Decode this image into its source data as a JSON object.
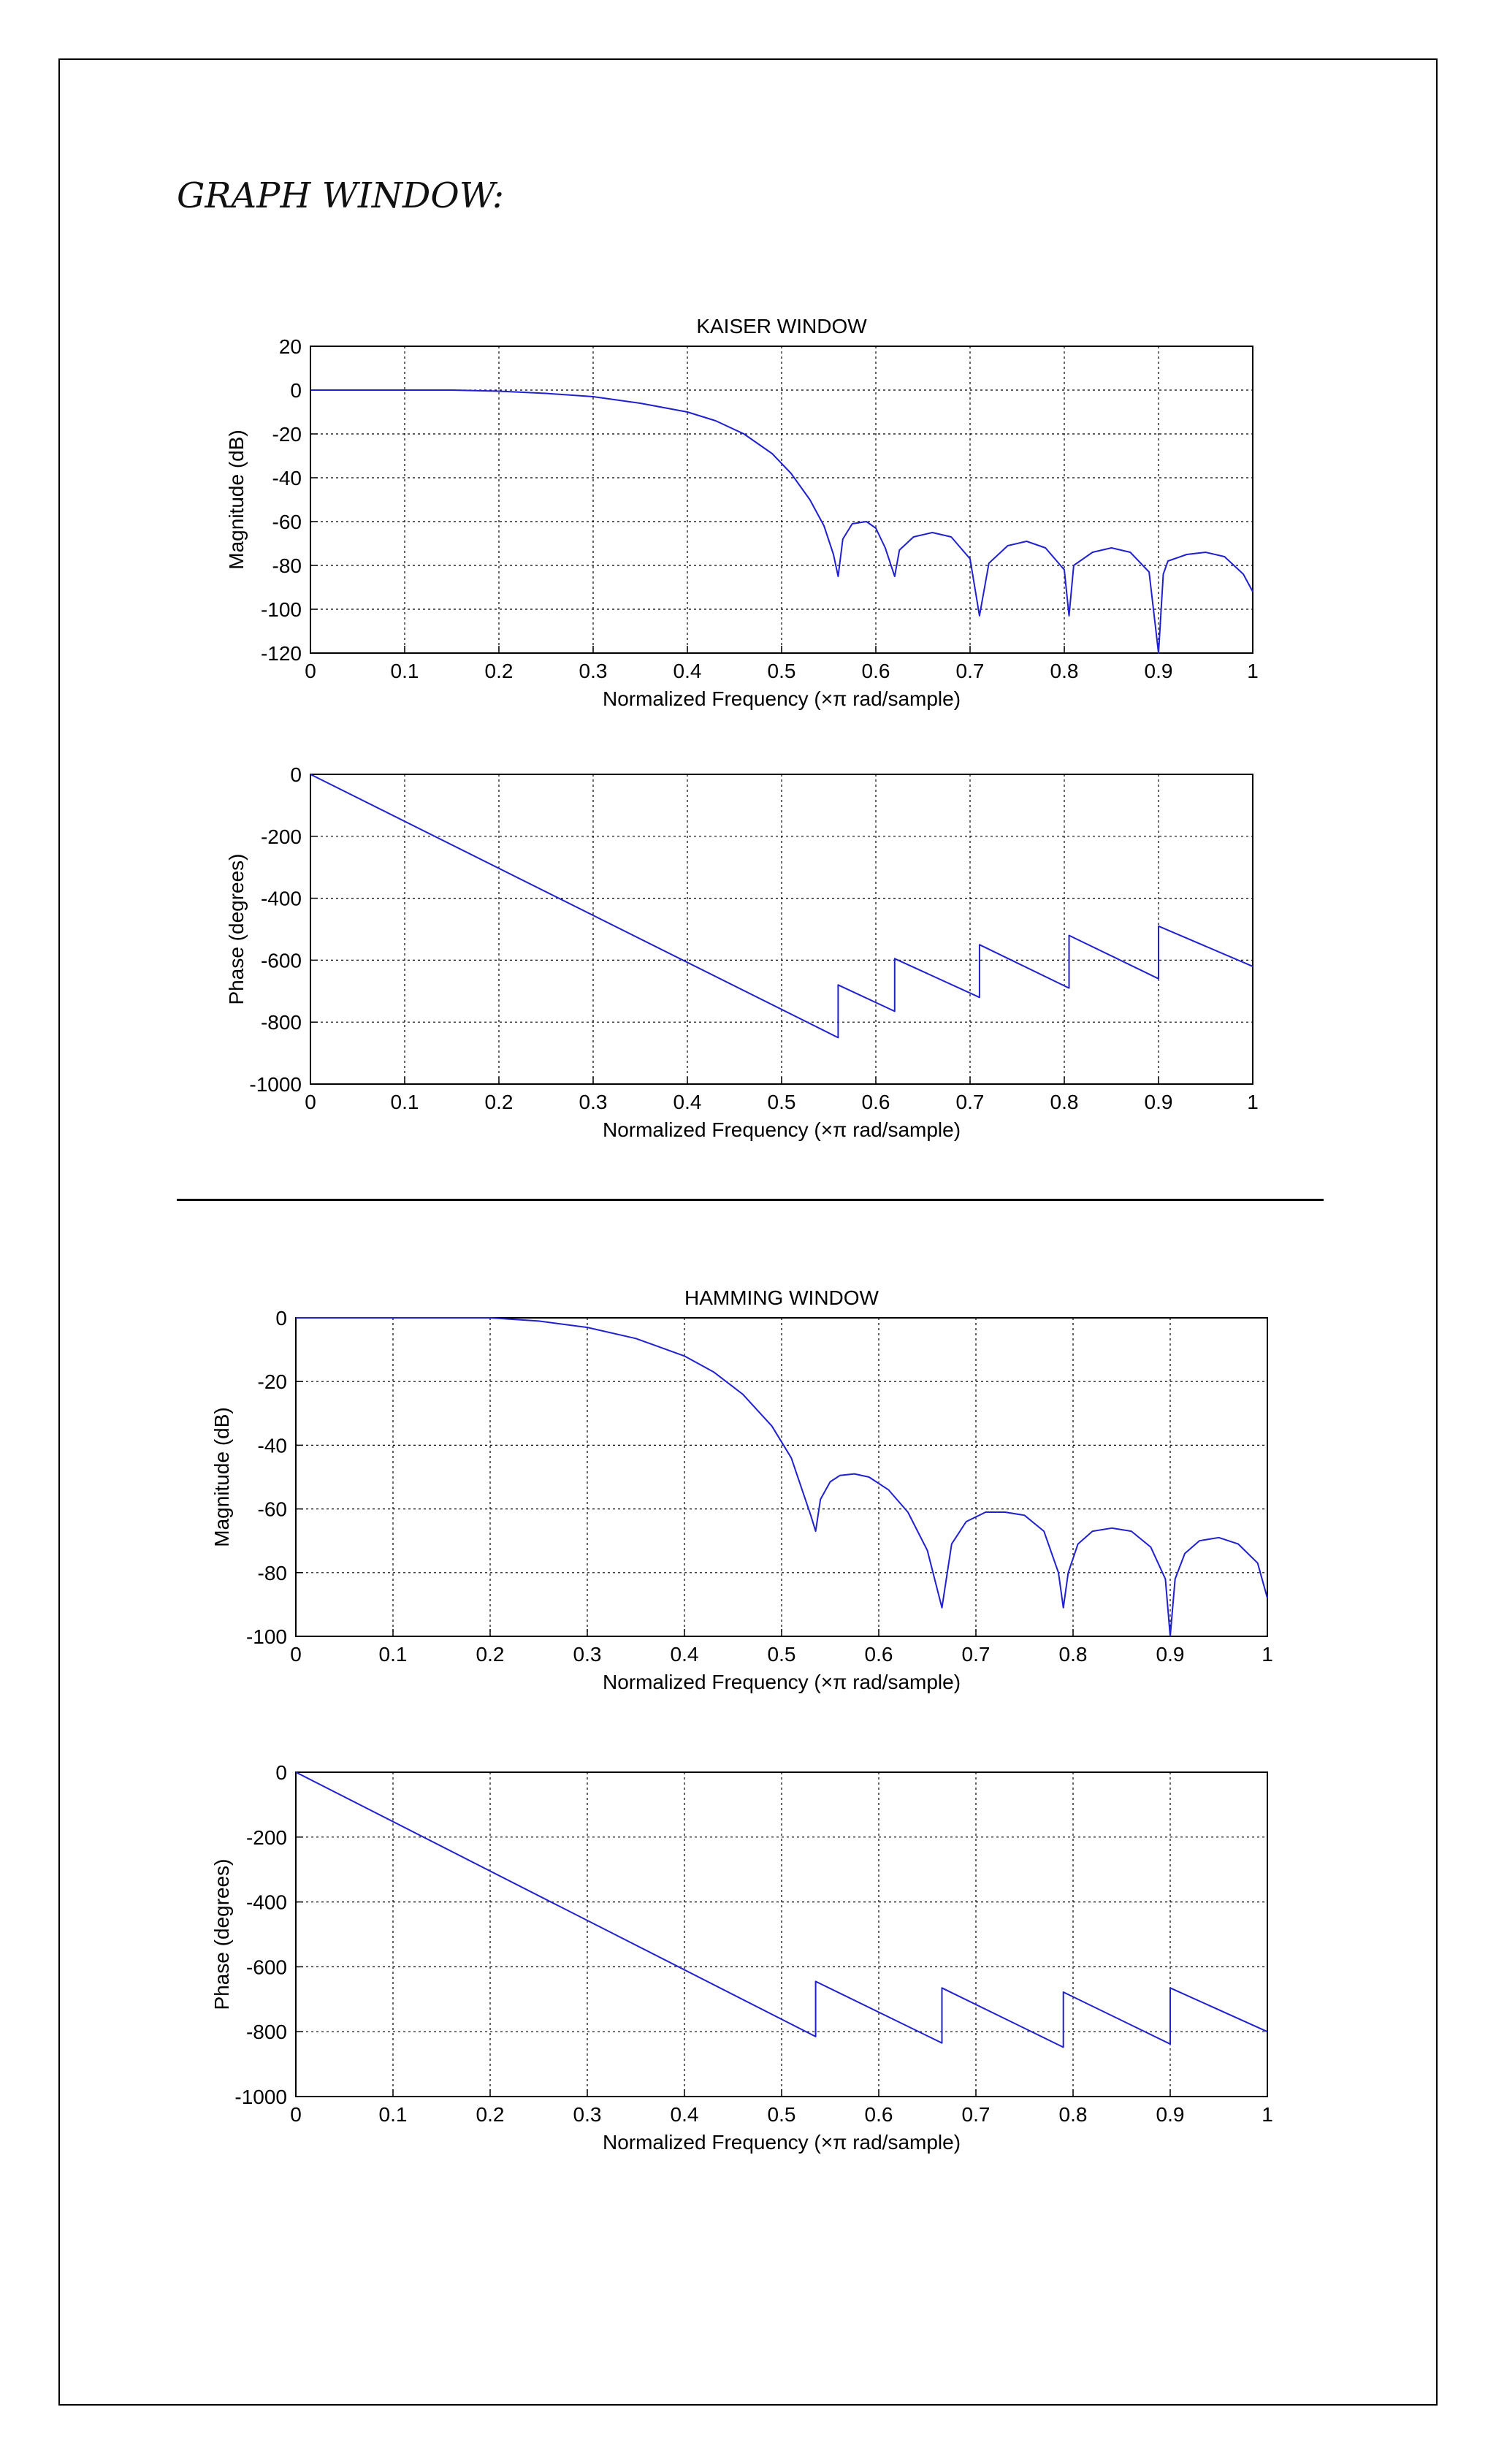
{
  "page": {
    "heading": "GRAPH WINDOW:"
  },
  "colors": {
    "curve": "#2020d0",
    "grid": "#000000",
    "axes": "#000000"
  },
  "chart_data": [
    {
      "id": "kaiser-mag",
      "type": "line",
      "title": "KAISER WINDOW",
      "xlabel_main": "Normalized Frequency",
      "xlabel_unit": "(×π rad/sample)",
      "ylabel": "Magnitude (dB)",
      "xlim": [
        0,
        1
      ],
      "ylim": [
        -120,
        20
      ],
      "xticks": [
        0,
        0.1,
        0.2,
        0.3,
        0.4,
        0.5,
        0.6,
        0.7,
        0.8,
        0.9,
        1
      ],
      "xtick_labels": [
        "0",
        "0.1",
        "0.2",
        "0.3",
        "0.4",
        "0.5",
        "0.6",
        "0.7",
        "0.8",
        "0.9",
        "1"
      ],
      "yticks": [
        -120,
        -100,
        -80,
        -60,
        -40,
        -20,
        0,
        20
      ],
      "ytick_labels": [
        "-120",
        "-100",
        "-80",
        "-60",
        "-40",
        "-20",
        "0",
        "20"
      ],
      "grid": true,
      "series": [
        {
          "x": [
            0,
            0.1,
            0.15,
            0.2,
            0.25,
            0.3,
            0.35,
            0.4,
            0.43,
            0.46,
            0.49,
            0.51,
            0.53,
            0.545,
            0.555,
            0.56,
            0.565,
            0.575,
            0.59,
            0.6,
            0.61,
            0.62,
            0.625,
            0.64,
            0.66,
            0.68,
            0.7,
            0.71,
            0.72,
            0.74,
            0.76,
            0.78,
            0.8,
            0.805,
            0.81,
            0.83,
            0.85,
            0.87,
            0.89,
            0.9,
            0.905,
            0.91,
            0.93,
            0.95,
            0.97,
            0.99,
            1.0
          ],
          "y": [
            0,
            0,
            0,
            -0.5,
            -1.5,
            -3,
            -6,
            -10,
            -14,
            -20,
            -29,
            -38,
            -50,
            -62,
            -75,
            -85,
            -68,
            -61,
            -60,
            -63,
            -72,
            -85,
            -73,
            -67,
            -65,
            -67,
            -77,
            -103,
            -79,
            -71,
            -69,
            -72,
            -82,
            -103,
            -80,
            -74,
            -72,
            -74,
            -83,
            -120,
            -84,
            -78,
            -75,
            -74,
            -76,
            -84,
            -92
          ]
        }
      ]
    },
    {
      "id": "kaiser-phase",
      "type": "line",
      "xlabel_main": "Normalized Frequency",
      "xlabel_unit": "(×π rad/sample)",
      "ylabel": "Phase (degrees)",
      "xlim": [
        0,
        1
      ],
      "ylim": [
        -1000,
        0
      ],
      "xticks": [
        0,
        0.1,
        0.2,
        0.3,
        0.4,
        0.5,
        0.6,
        0.7,
        0.8,
        0.9,
        1
      ],
      "xtick_labels": [
        "0",
        "0.1",
        "0.2",
        "0.3",
        "0.4",
        "0.5",
        "0.6",
        "0.7",
        "0.8",
        "0.9",
        "1"
      ],
      "yticks": [
        -1000,
        -800,
        -600,
        -400,
        -200,
        0
      ],
      "ytick_labels": [
        "-1000",
        "-800",
        "-600",
        "-400",
        "-200",
        "0"
      ],
      "grid": true,
      "series": [
        {
          "x": [
            0,
            0.56,
            0.56,
            0.62,
            0.62,
            0.71,
            0.71,
            0.805,
            0.805,
            0.9,
            0.9,
            1.0
          ],
          "y": [
            0,
            -850,
            -680,
            -765,
            -595,
            -720,
            -550,
            -690,
            -520,
            -660,
            -490,
            -620
          ]
        }
      ]
    },
    {
      "id": "hamming-mag",
      "type": "line",
      "title": "HAMMING WINDOW",
      "xlabel_main": "Normalized Frequency",
      "xlabel_unit": "(×π rad/sample)",
      "ylabel": "Magnitude (dB)",
      "xlim": [
        0,
        1
      ],
      "ylim": [
        -100,
        0
      ],
      "xticks": [
        0,
        0.1,
        0.2,
        0.3,
        0.4,
        0.5,
        0.6,
        0.7,
        0.8,
        0.9,
        1
      ],
      "xtick_labels": [
        "0",
        "0.1",
        "0.2",
        "0.3",
        "0.4",
        "0.5",
        "0.6",
        "0.7",
        "0.8",
        "0.9",
        "1"
      ],
      "yticks": [
        -100,
        -80,
        -60,
        -40,
        -20,
        0
      ],
      "ytick_labels": [
        "-100",
        "-80",
        "-60",
        "-40",
        "-20",
        "0"
      ],
      "grid": true,
      "series": [
        {
          "x": [
            0,
            0.1,
            0.2,
            0.25,
            0.3,
            0.35,
            0.4,
            0.43,
            0.46,
            0.49,
            0.51,
            0.52,
            0.53,
            0.535,
            0.54,
            0.55,
            0.56,
            0.575,
            0.59,
            0.61,
            0.63,
            0.65,
            0.665,
            0.675,
            0.69,
            0.71,
            0.73,
            0.75,
            0.77,
            0.785,
            0.79,
            0.795,
            0.805,
            0.82,
            0.84,
            0.86,
            0.88,
            0.895,
            0.9,
            0.905,
            0.915,
            0.93,
            0.95,
            0.97,
            0.99,
            1.0
          ],
          "y": [
            0,
            0,
            0,
            -1,
            -3,
            -6.5,
            -12,
            -17,
            -24,
            -34,
            -44,
            -53,
            -62,
            -67,
            -57,
            -51.5,
            -49.5,
            -49,
            -50,
            -54,
            -61,
            -73,
            -91,
            -71,
            -64,
            -61,
            -61,
            -62,
            -67,
            -80,
            -91,
            -80,
            -71,
            -67,
            -66,
            -67,
            -72,
            -82,
            -100,
            -82,
            -74,
            -70,
            -69,
            -71,
            -77,
            -88
          ]
        }
      ]
    },
    {
      "id": "hamming-phase",
      "type": "line",
      "xlabel_main": "Normalized Frequency",
      "xlabel_unit": "(×π rad/sample)",
      "ylabel": "Phase (degrees)",
      "xlim": [
        0,
        1
      ],
      "ylim": [
        -1000,
        0
      ],
      "xticks": [
        0,
        0.1,
        0.2,
        0.3,
        0.4,
        0.5,
        0.6,
        0.7,
        0.8,
        0.9,
        1
      ],
      "xtick_labels": [
        "0",
        "0.1",
        "0.2",
        "0.3",
        "0.4",
        "0.5",
        "0.6",
        "0.7",
        "0.8",
        "0.9",
        "1"
      ],
      "yticks": [
        -1000,
        -800,
        -600,
        -400,
        -200,
        0
      ],
      "ytick_labels": [
        "-1000",
        "-800",
        "-600",
        "-400",
        "-200",
        "0"
      ],
      "grid": true,
      "series": [
        {
          "x": [
            0,
            0.535,
            0.535,
            0.665,
            0.665,
            0.79,
            0.79,
            0.9,
            0.9,
            1.0
          ],
          "y": [
            0,
            -815,
            -645,
            -835,
            -665,
            -848,
            -678,
            -838,
            -665,
            -800
          ]
        }
      ]
    }
  ]
}
